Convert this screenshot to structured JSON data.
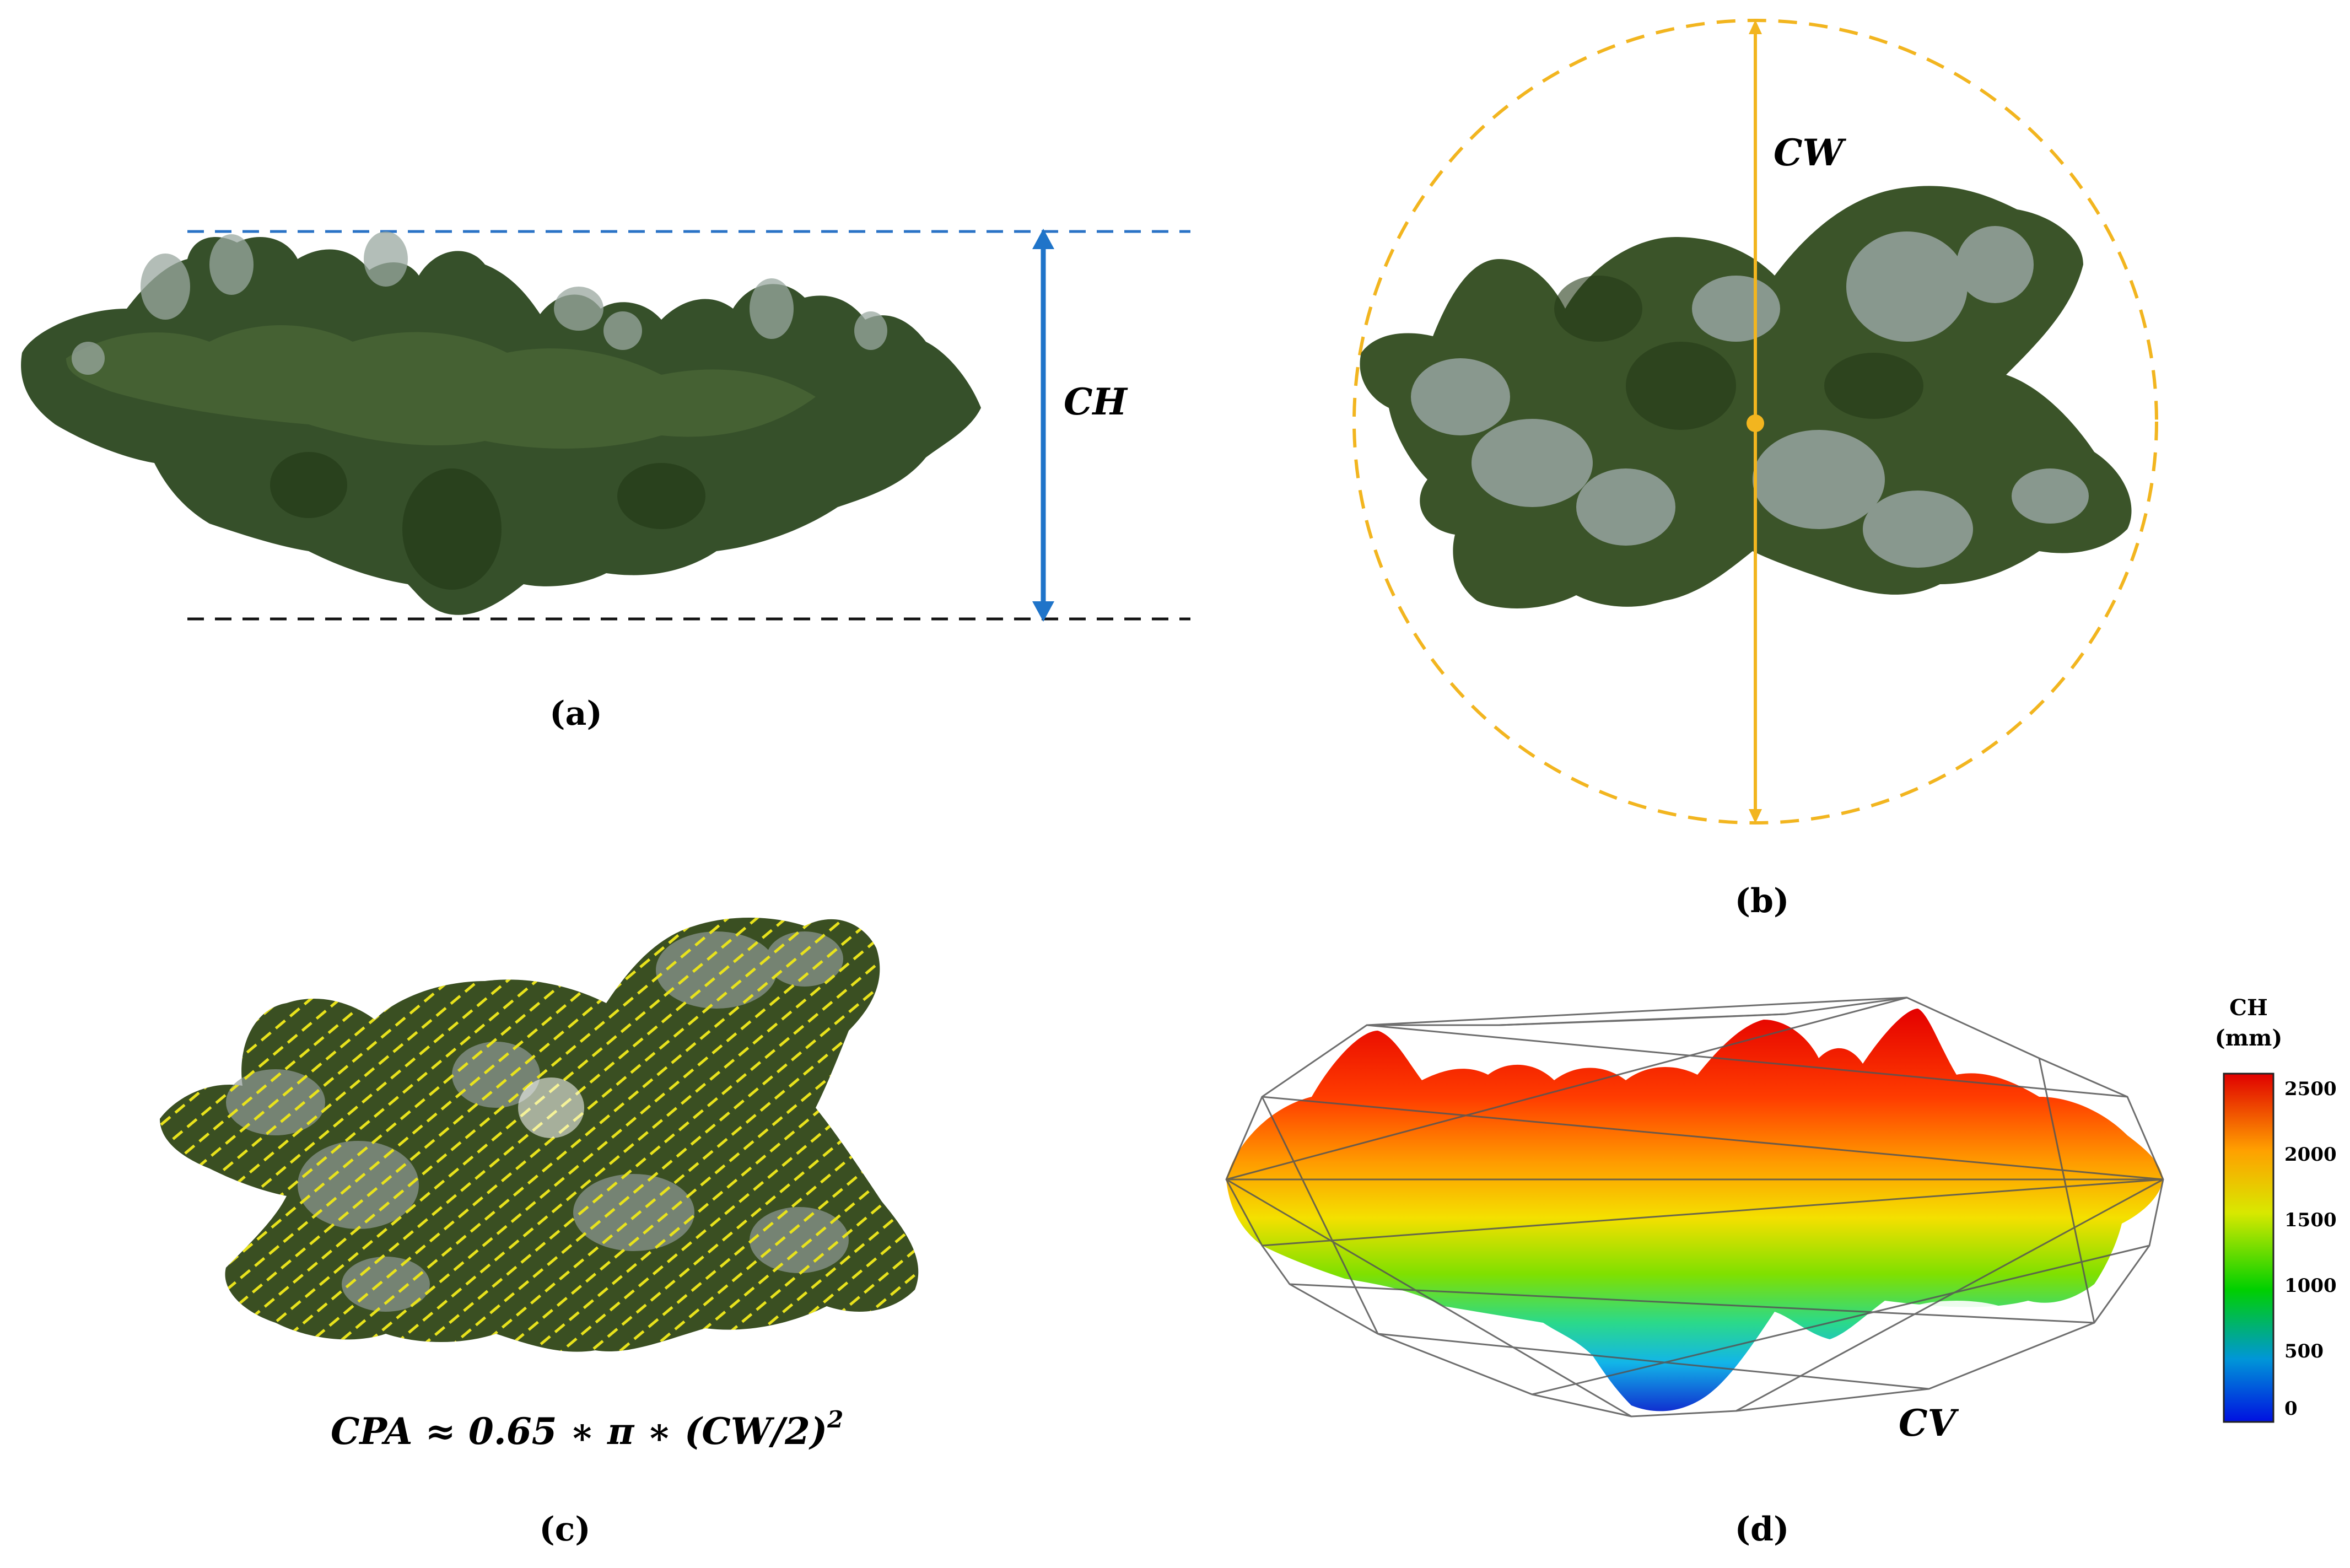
{
  "panels": {
    "a": {
      "caption": "(a)",
      "label": "CH"
    },
    "b": {
      "caption": "(b)",
      "label": "CW"
    },
    "c": {
      "caption": "(c)",
      "formula_main": "CPA ≈ 0.65 ∗ π ∗ (CW/2)",
      "formula_exp": "2"
    },
    "d": {
      "caption": "(d)",
      "label": "CV"
    }
  },
  "colorbar": {
    "title_line1": "CH",
    "title_line2": "(mm)",
    "ticks": [
      "2500",
      "2000",
      "1500",
      "1000",
      "500",
      "0"
    ],
    "range": [
      0,
      2600
    ]
  },
  "colors": {
    "ch_arrow": "#1f74c9",
    "top_dashed": "#2a73c6",
    "bottom_dashed": "#111111",
    "cw_line": "#f2b51f",
    "foliage_dark": "#2f4a1f",
    "foliage_mid": "#465f2c",
    "foliage_light": "#8d9a90",
    "hatch": "#e8e21c"
  }
}
